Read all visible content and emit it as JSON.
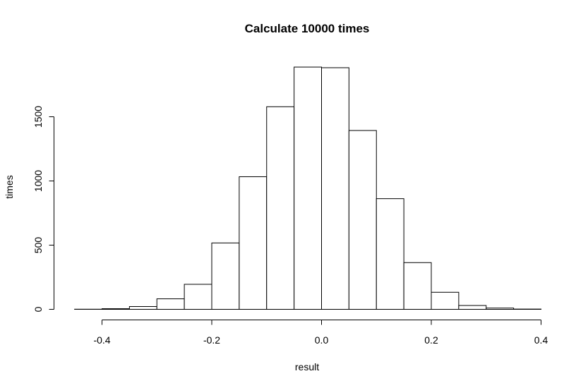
{
  "chart_data": {
    "type": "bar",
    "title": "Calculate 10000 times",
    "xlabel": "result",
    "ylabel": "times",
    "bin_edges": [
      -0.45,
      -0.4,
      -0.35,
      -0.3,
      -0.25,
      -0.2,
      -0.15,
      -0.1,
      -0.05,
      0.0,
      0.05,
      0.1,
      0.15,
      0.2,
      0.25,
      0.3,
      0.35,
      0.4
    ],
    "values": [
      1,
      5,
      22,
      82,
      195,
      517,
      1033,
      1578,
      1887,
      1882,
      1393,
      862,
      364,
      133,
      30,
      10,
      2
    ],
    "xlim": [
      -0.45,
      0.4
    ],
    "ylim": [
      0,
      1900
    ],
    "x_ticks": [
      -0.4,
      -0.2,
      0.0,
      0.2,
      0.4
    ],
    "x_tick_labels": [
      "-0.4",
      "-0.2",
      "0.0",
      "0.2",
      "0.4"
    ],
    "y_ticks": [
      0,
      500,
      1000,
      1500
    ],
    "y_tick_labels": [
      "0",
      "500",
      "1000",
      "1500"
    ],
    "grid": false,
    "bar_fill": "#ffffff",
    "bar_stroke": "#000000"
  }
}
